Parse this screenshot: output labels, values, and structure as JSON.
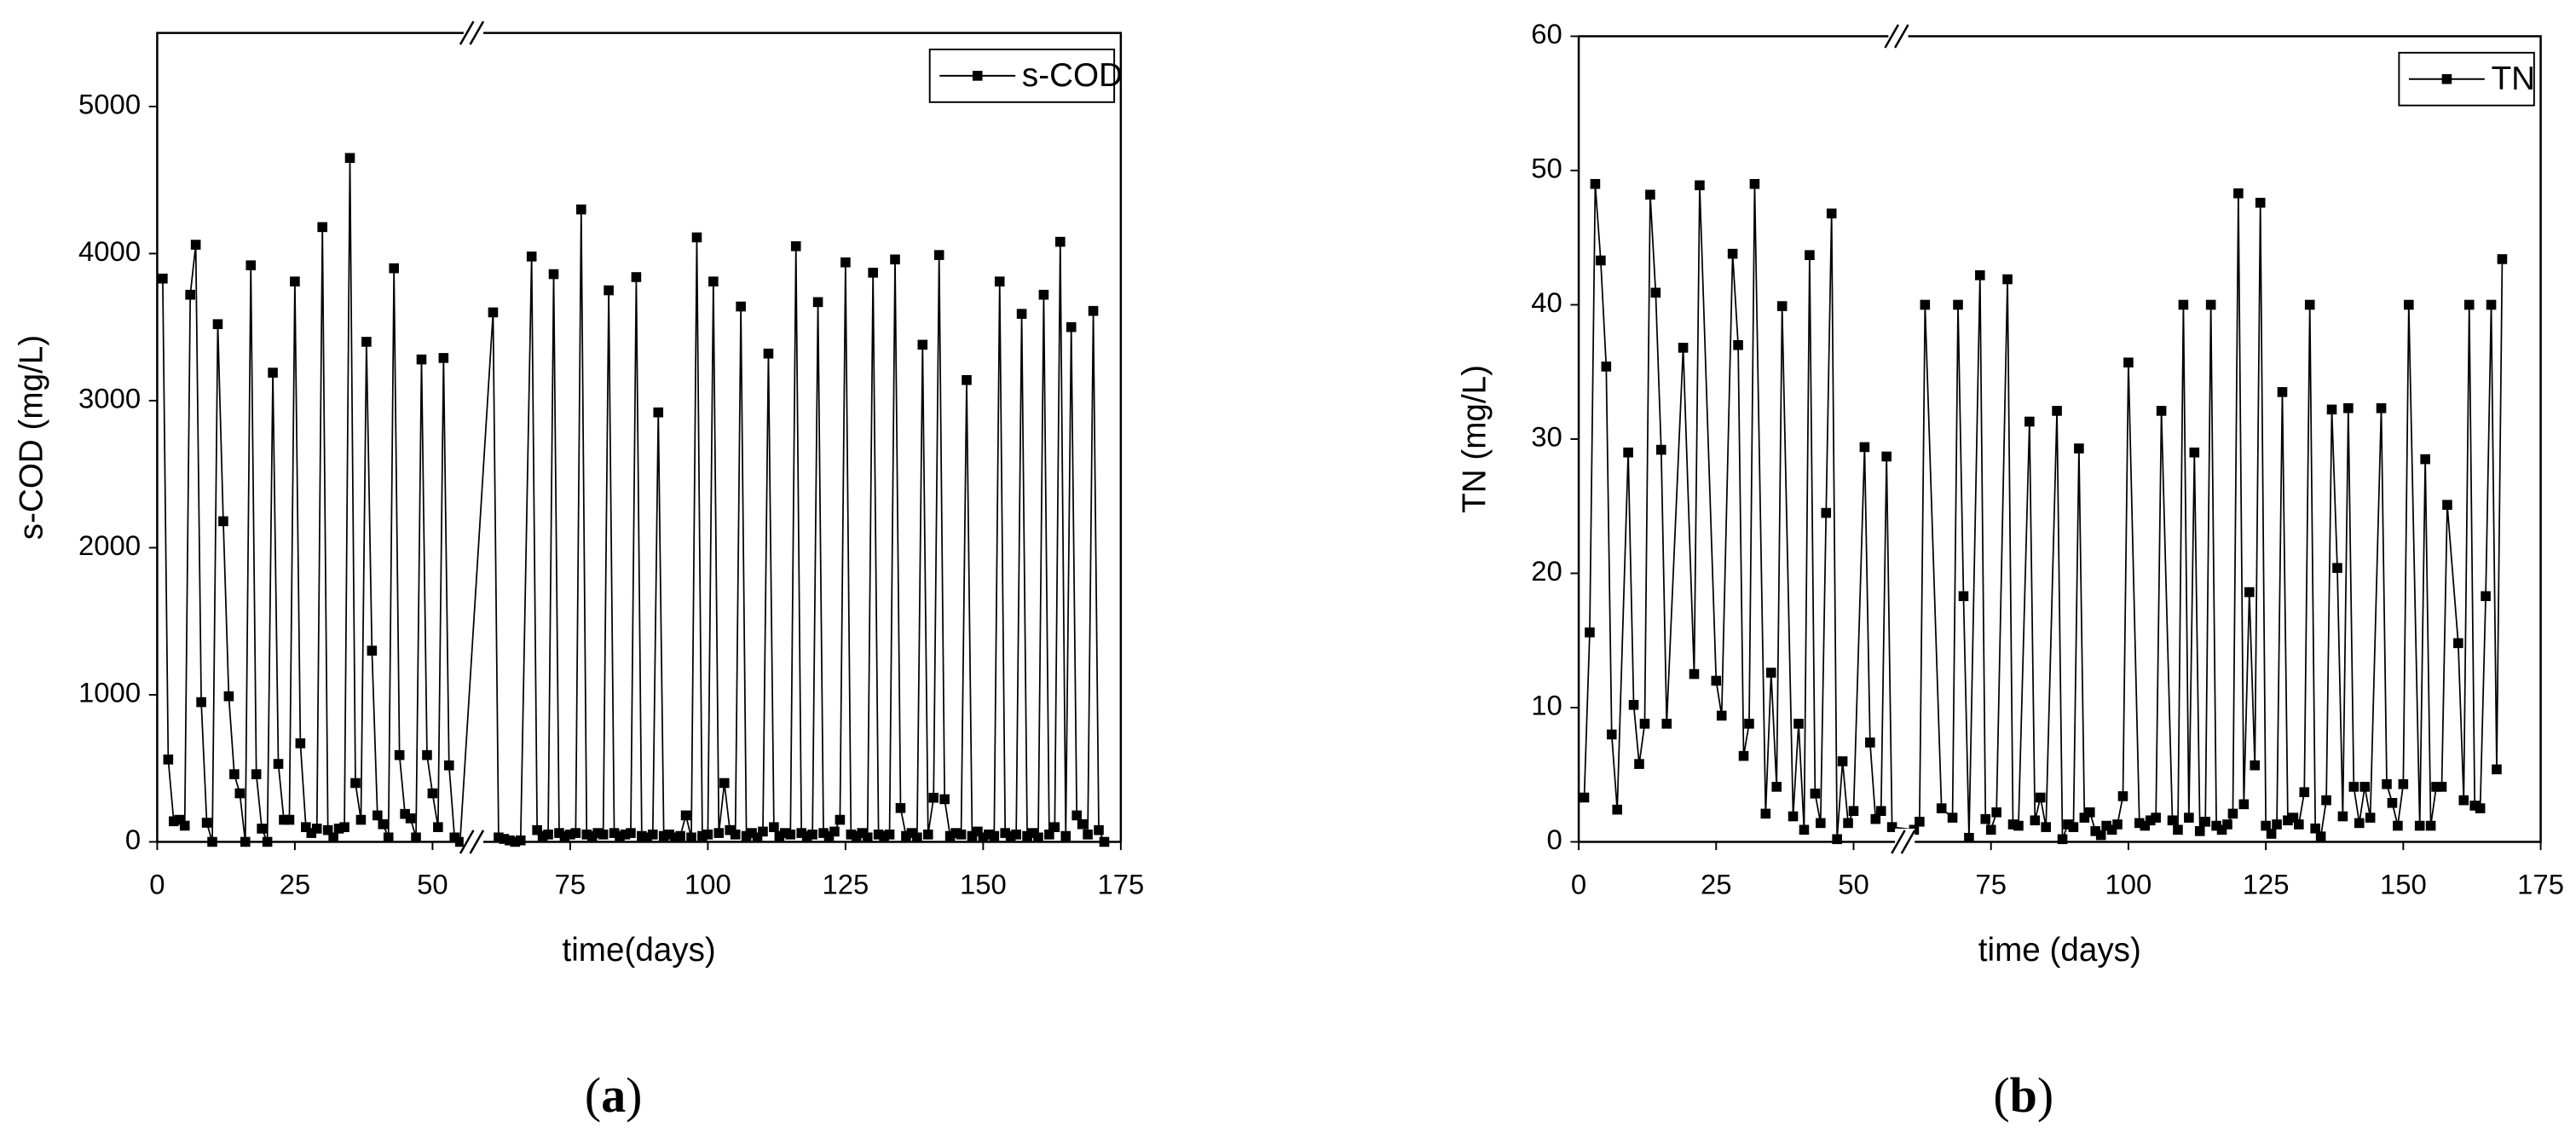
{
  "chart_data": [
    {
      "type": "line",
      "label": "(a)",
      "xlabel": "time(days)",
      "ylabel": "s-COD (mg/L)",
      "legend": "upper right",
      "xlim": [
        0,
        175
      ],
      "xticks": [
        0,
        25,
        50,
        75,
        100,
        125,
        150,
        175
      ],
      "ylim": [
        0,
        5500
      ],
      "yticks": [
        0,
        1000,
        2000,
        3000,
        4000,
        5000
      ],
      "x": [
        1,
        2,
        3,
        4,
        5,
        6,
        7,
        8,
        9,
        10,
        11,
        12,
        13,
        14,
        15,
        16,
        17,
        18,
        19,
        20,
        21,
        22,
        23,
        24,
        25,
        26,
        27,
        28,
        29,
        30,
        31,
        32,
        33,
        34,
        35,
        36,
        37,
        38,
        39,
        40,
        41,
        42,
        43,
        44,
        45,
        46,
        47,
        48,
        49,
        50,
        51,
        52,
        53,
        54,
        55,
        61,
        62,
        63,
        64,
        65,
        66,
        68,
        69,
        70,
        71,
        72,
        73,
        74,
        75,
        76,
        77,
        78,
        79,
        80,
        81,
        82,
        83,
        84,
        85,
        86,
        87,
        88,
        89,
        90,
        91,
        92,
        93,
        94,
        95,
        96,
        97,
        98,
        99,
        100,
        101,
        102,
        103,
        104,
        105,
        106,
        107,
        108,
        109,
        110,
        111,
        112,
        113,
        114,
        115,
        116,
        117,
        118,
        119,
        120,
        121,
        122,
        123,
        124,
        125,
        126,
        127,
        128,
        129,
        130,
        131,
        132,
        133,
        134,
        135,
        136,
        137,
        138,
        139,
        140,
        141,
        142,
        143,
        144,
        145,
        146,
        147,
        148,
        149,
        150,
        151,
        152,
        153,
        154,
        155,
        156,
        157,
        158,
        159,
        160,
        161,
        162,
        163,
        164,
        165,
        166,
        167,
        168,
        169,
        170,
        171,
        172
      ],
      "series": [
        {
          "name": "s-COD",
          "color": "#000000",
          "values": [
            3830,
            560,
            140,
            150,
            110,
            3720,
            4060,
            950,
            130,
            0,
            3520,
            2180,
            990,
            460,
            330,
            0,
            3920,
            460,
            90,
            0,
            3190,
            530,
            150,
            150,
            3810,
            670,
            100,
            60,
            90,
            4180,
            80,
            30,
            90,
            100,
            4650,
            400,
            150,
            3400,
            1300,
            180,
            120,
            30,
            3900,
            590,
            190,
            160,
            30,
            3280,
            590,
            330,
            100,
            3290,
            520,
            30,
            0,
            3600,
            30,
            20,
            10,
            0,
            10,
            3980,
            80,
            40,
            50,
            3860,
            60,
            40,
            50,
            60,
            4300,
            50,
            40,
            60,
            50,
            3750,
            60,
            40,
            50,
            60,
            3840,
            40,
            30,
            50,
            2920,
            40,
            50,
            30,
            40,
            180,
            30,
            4110,
            40,
            50,
            3810,
            60,
            400,
            80,
            50,
            3640,
            40,
            60,
            30,
            70,
            3320,
            100,
            40,
            60,
            50,
            4050,
            60,
            40,
            50,
            3670,
            60,
            40,
            70,
            150,
            3940,
            50,
            40,
            60,
            30,
            3870,
            50,
            40,
            50,
            3960,
            230,
            40,
            60,
            30,
            3380,
            50,
            300,
            3990,
            290,
            40,
            60,
            50,
            3140,
            40,
            70,
            30,
            50,
            40,
            3810,
            60,
            40,
            50,
            3590,
            40,
            60,
            30,
            3720,
            50,
            100,
            4080,
            40,
            3500,
            180,
            120,
            50,
            3610,
            80,
            0
          ]
        }
      ]
    },
    {
      "type": "line",
      "label": "(b)",
      "xlabel": "time (days)",
      "ylabel": "TN (mg/L)",
      "legend": "upper right",
      "xlim": [
        0,
        175
      ],
      "xticks": [
        0,
        25,
        50,
        75,
        100,
        125,
        150,
        175
      ],
      "ylim": [
        0,
        60
      ],
      "yticks": [
        0,
        10,
        20,
        30,
        40,
        50,
        60
      ],
      "x": [
        1,
        2,
        3,
        4,
        5,
        6,
        7,
        9,
        10,
        11,
        12,
        13,
        14,
        15,
        16,
        19,
        21,
        22,
        25,
        26,
        28,
        29,
        30,
        31,
        32,
        34,
        35,
        36,
        37,
        39,
        40,
        41,
        42,
        43,
        44,
        45,
        46,
        47,
        48,
        49,
        50,
        52,
        53,
        54,
        55,
        56,
        57,
        61,
        62,
        63,
        66,
        68,
        69,
        70,
        71,
        73,
        74,
        75,
        76,
        78,
        79,
        80,
        82,
        83,
        84,
        85,
        87,
        88,
        89,
        90,
        91,
        92,
        93,
        94,
        95,
        96,
        97,
        98,
        99,
        100,
        102,
        103,
        104,
        105,
        106,
        108,
        109,
        110,
        111,
        112,
        113,
        114,
        115,
        116,
        117,
        118,
        119,
        120,
        121,
        122,
        123,
        124,
        125,
        126,
        127,
        128,
        129,
        130,
        131,
        132,
        133,
        134,
        135,
        136,
        137,
        138,
        139,
        140,
        141,
        142,
        143,
        144,
        146,
        147,
        148,
        149,
        150,
        151,
        153,
        154,
        155,
        156,
        157,
        158,
        160,
        161,
        162,
        163,
        164,
        165,
        166,
        167,
        168
      ],
      "series": [
        {
          "name": "TN",
          "color": "#000000",
          "values": [
            3.3,
            15.6,
            49,
            43.3,
            35.4,
            8,
            2.4,
            29,
            10.2,
            5.8,
            8.8,
            48.2,
            40.9,
            29.2,
            8.8,
            36.8,
            12.5,
            48.9,
            12,
            9.4,
            43.8,
            37,
            6.4,
            8.8,
            49,
            2.1,
            12.6,
            4.1,
            39.9,
            1.9,
            8.8,
            0.9,
            43.7,
            3.6,
            1.4,
            24.5,
            46.8,
            0.2,
            6,
            1.4,
            2.3,
            29.4,
            7.4,
            1.7,
            2.3,
            28.7,
            1.1,
            0.9,
            1.5,
            40,
            2.5,
            1.8,
            40,
            18.3,
            0.3,
            42.2,
            1.7,
            0.9,
            2.2,
            41.9,
            1.3,
            1.2,
            31.3,
            1.6,
            3.3,
            1.1,
            32.1,
            0.2,
            1.3,
            1.1,
            29.3,
            1.8,
            2.2,
            0.8,
            0.5,
            1.2,
            0.9,
            1.3,
            3.4,
            35.7,
            1.4,
            1.2,
            1.6,
            1.8,
            32.1,
            1.6,
            0.9,
            40,
            1.8,
            29,
            0.8,
            1.5,
            40,
            1.2,
            0.9,
            1.3,
            2.1,
            48.3,
            2.8,
            18.6,
            5.7,
            47.6,
            1.2,
            0.6,
            1.3,
            33.5,
            1.6,
            1.8,
            1.3,
            3.7,
            40,
            1,
            0.4,
            3.1,
            32.2,
            20.4,
            1.9,
            32.3,
            4.1,
            1.4,
            4.1,
            1.8,
            32.3,
            4.3,
            2.9,
            1.2,
            4.3,
            40,
            1.2,
            28.5,
            1.2,
            4.1,
            4.1,
            25.1,
            14.8,
            3.1,
            40,
            2.7,
            2.5,
            18.3,
            40,
            5.4,
            43.4
          ]
        }
      ]
    }
  ]
}
